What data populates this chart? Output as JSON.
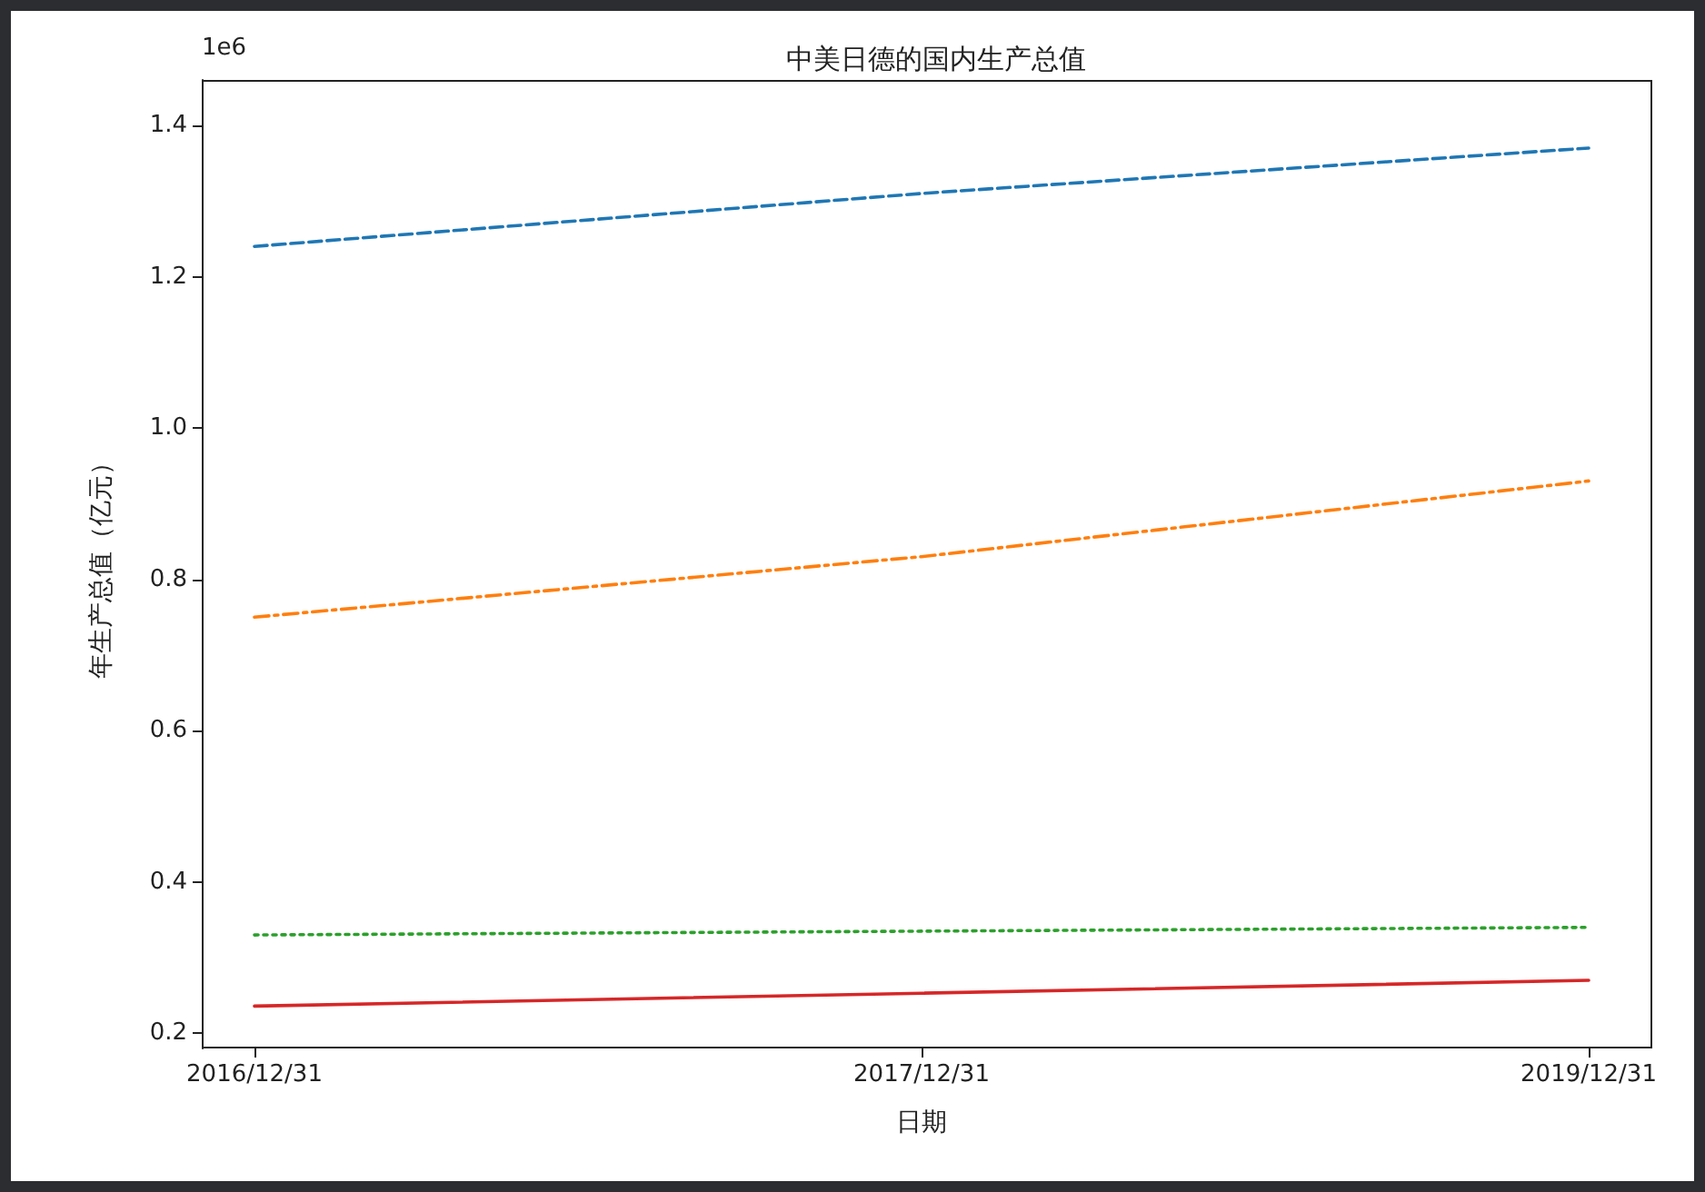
{
  "chart_data": {
    "type": "line",
    "title": "中美日德的国内生产总值",
    "xlabel": "日期",
    "ylabel": "年生产总值（亿元）",
    "annotations": [
      "1e6"
    ],
    "categories": [
      "2016/12/31",
      "2017/12/31",
      "2019/12/31"
    ],
    "series": [
      {
        "color": "#1f77b4",
        "line_style": "dashed",
        "values": [
          1.24,
          1.31,
          1.37
        ]
      },
      {
        "color": "#ff7f0e",
        "line_style": "dashdot",
        "values": [
          0.75,
          0.83,
          0.93
        ]
      },
      {
        "color": "#2ca02c",
        "line_style": "dotted",
        "values": [
          0.33,
          0.335,
          0.34
        ]
      },
      {
        "color": "#d62728",
        "line_style": "solid",
        "values": [
          0.236,
          0.253,
          0.27
        ]
      }
    ],
    "ylim": [
      0.18,
      1.46
    ],
    "yticks": [
      {
        "value": 0.2,
        "label": "0.2"
      },
      {
        "value": 0.4,
        "label": "0.4"
      },
      {
        "value": 0.6,
        "label": "0.6"
      },
      {
        "value": 0.8,
        "label": "0.8"
      },
      {
        "value": 1.0,
        "label": "1.0"
      },
      {
        "value": 1.2,
        "label": "1.2"
      },
      {
        "value": 1.4,
        "label": "1.4"
      }
    ],
    "grid": false,
    "marker": "none"
  }
}
